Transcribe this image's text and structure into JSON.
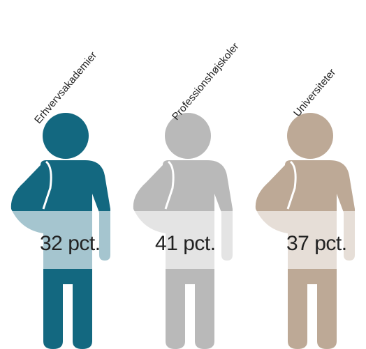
{
  "chart_data": {
    "type": "pictograph",
    "title": "",
    "categories": [
      "Erhvervsakademier",
      "Professionshøjskoler",
      "Universiteter"
    ],
    "values": [
      32,
      41,
      37
    ],
    "value_labels": [
      "32 pct.",
      "41 pct.",
      "37 pct."
    ],
    "unit": "pct.",
    "colors": [
      "#136880",
      "#b9b9b9",
      "#bda996"
    ]
  }
}
